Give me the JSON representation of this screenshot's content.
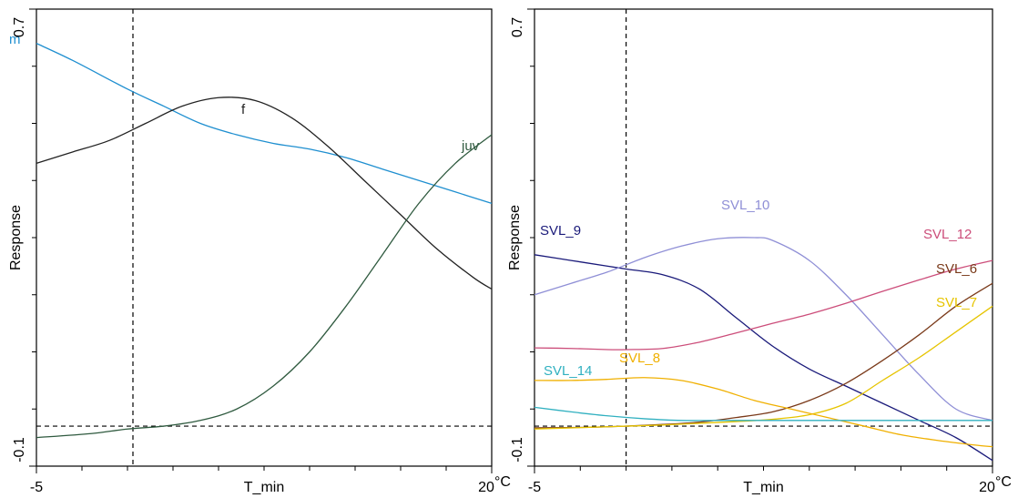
{
  "chart_data": [
    {
      "type": "line",
      "xlabel": "T_min",
      "ylabel": "Response",
      "x_tick_labels": [
        "-5",
        "20"
      ],
      "x_unit": "°C",
      "y_tick_labels": [
        "-0.1",
        "0.7"
      ],
      "xlim": [
        -5,
        20
      ],
      "ylim": [
        -0.1,
        0.7
      ],
      "x_minor_ticks": [
        -5,
        -2.5,
        0,
        2.5,
        5,
        7.5,
        10,
        12.5,
        15,
        17.5,
        20
      ],
      "y_minor_ticks": [
        -0.1,
        0.0,
        0.1,
        0.2,
        0.3,
        0.4,
        0.5,
        0.6,
        0.7
      ],
      "reference_lines": {
        "vertical_x": 0.3,
        "horizontal_y": -0.03
      },
      "series": [
        {
          "name": "m",
          "color": "#1f8fd0",
          "x": [
            -5,
            -3,
            0,
            2,
            4,
            6,
            8,
            10,
            12,
            14,
            16,
            18,
            20
          ],
          "y": [
            0.64,
            0.61,
            0.56,
            0.53,
            0.5,
            0.48,
            0.465,
            0.455,
            0.44,
            0.42,
            0.4,
            0.38,
            0.36
          ]
        },
        {
          "name": "f",
          "color": "#222222",
          "x": [
            -5,
            -3,
            -1,
            1,
            3,
            5,
            7,
            9,
            11,
            13,
            15,
            17,
            19,
            20
          ],
          "y": [
            0.43,
            0.45,
            0.47,
            0.5,
            0.53,
            0.545,
            0.54,
            0.51,
            0.46,
            0.4,
            0.34,
            0.28,
            0.23,
            0.21
          ]
        },
        {
          "name": "juv",
          "color": "#2f5a3f",
          "x": [
            -5,
            -2,
            0,
            2,
            4,
            6,
            8,
            10,
            12,
            14,
            16,
            18,
            20
          ],
          "y": [
            -0.05,
            -0.043,
            -0.035,
            -0.03,
            -0.02,
            0.0,
            0.04,
            0.1,
            0.18,
            0.27,
            0.36,
            0.43,
            0.48
          ]
        }
      ],
      "series_label_color": {
        "m": "#1f8fd0",
        "f": "#222222",
        "juv": "#2f5a3f"
      }
    },
    {
      "type": "line",
      "xlabel": "T_min",
      "ylabel": "Response",
      "x_tick_labels": [
        "-5",
        "20"
      ],
      "x_unit": "°C",
      "y_tick_labels": [
        "-0.1",
        "0.7"
      ],
      "xlim": [
        -5,
        20
      ],
      "ylim": [
        -0.1,
        0.7
      ],
      "x_minor_ticks": [
        -5,
        -2.5,
        0,
        2.5,
        5,
        7.5,
        10,
        12.5,
        15,
        17.5,
        20
      ],
      "y_minor_ticks": [
        -0.1,
        0.0,
        0.1,
        0.2,
        0.3,
        0.4,
        0.5,
        0.6,
        0.7
      ],
      "reference_lines": {
        "vertical_x": 0.0,
        "horizontal_y": -0.03
      },
      "series": [
        {
          "name": "SVL_9",
          "color": "#1a1a7a",
          "x": [
            -5,
            -3,
            -1,
            0,
            2,
            4,
            6,
            8,
            10,
            12,
            14,
            16,
            18,
            20
          ],
          "y": [
            0.27,
            0.26,
            0.25,
            0.245,
            0.235,
            0.21,
            0.16,
            0.11,
            0.07,
            0.04,
            0.01,
            -0.02,
            -0.05,
            -0.09
          ]
        },
        {
          "name": "SVL_10",
          "color": "#8f8fd6",
          "x": [
            -5,
            -3,
            -1,
            1,
            3,
            5,
            7,
            8,
            10,
            12,
            14,
            16,
            18,
            20
          ],
          "y": [
            0.2,
            0.22,
            0.24,
            0.265,
            0.285,
            0.298,
            0.3,
            0.295,
            0.26,
            0.2,
            0.13,
            0.06,
            0.0,
            -0.02
          ]
        },
        {
          "name": "SVL_12",
          "color": "#cc4d7a",
          "x": [
            -5,
            -3,
            -1,
            0,
            2,
            4,
            6,
            8,
            10,
            12,
            14,
            16,
            18,
            20
          ],
          "y": [
            0.107,
            0.106,
            0.104,
            0.104,
            0.106,
            0.117,
            0.133,
            0.15,
            0.166,
            0.185,
            0.206,
            0.226,
            0.245,
            0.26
          ]
        },
        {
          "name": "SVL_6",
          "color": "#7a3a1a",
          "x": [
            -5,
            -2,
            0,
            2,
            4,
            6,
            8,
            10,
            12,
            14,
            16,
            18,
            20
          ],
          "y": [
            -0.033,
            -0.032,
            -0.03,
            -0.027,
            -0.023,
            -0.015,
            -0.005,
            0.015,
            0.045,
            0.085,
            0.13,
            0.18,
            0.22
          ]
        },
        {
          "name": "SVL_7",
          "color": "#e6c400",
          "x": [
            -5,
            -2,
            0,
            2,
            4,
            6,
            8,
            10,
            12,
            14,
            16,
            18,
            20
          ],
          "y": [
            -0.035,
            -0.032,
            -0.03,
            -0.028,
            -0.025,
            -0.022,
            -0.018,
            -0.01,
            0.01,
            0.05,
            0.09,
            0.135,
            0.18
          ]
        },
        {
          "name": "SVL_8",
          "color": "#f0b000",
          "x": [
            -5,
            -3,
            -1,
            1,
            3,
            5,
            7,
            9,
            11,
            13,
            15,
            17,
            19,
            20
          ],
          "y": [
            0.05,
            0.05,
            0.052,
            0.055,
            0.05,
            0.035,
            0.015,
            0.0,
            -0.015,
            -0.03,
            -0.045,
            -0.055,
            -0.063,
            -0.066
          ]
        },
        {
          "name": "SVL_14",
          "color": "#30b0c0",
          "x": [
            -5,
            -3,
            -1,
            1,
            3,
            5,
            8,
            12,
            16,
            20
          ],
          "y": [
            0.003,
            -0.005,
            -0.012,
            -0.017,
            -0.02,
            -0.02,
            -0.02,
            -0.02,
            -0.02,
            -0.02
          ]
        }
      ]
    }
  ]
}
